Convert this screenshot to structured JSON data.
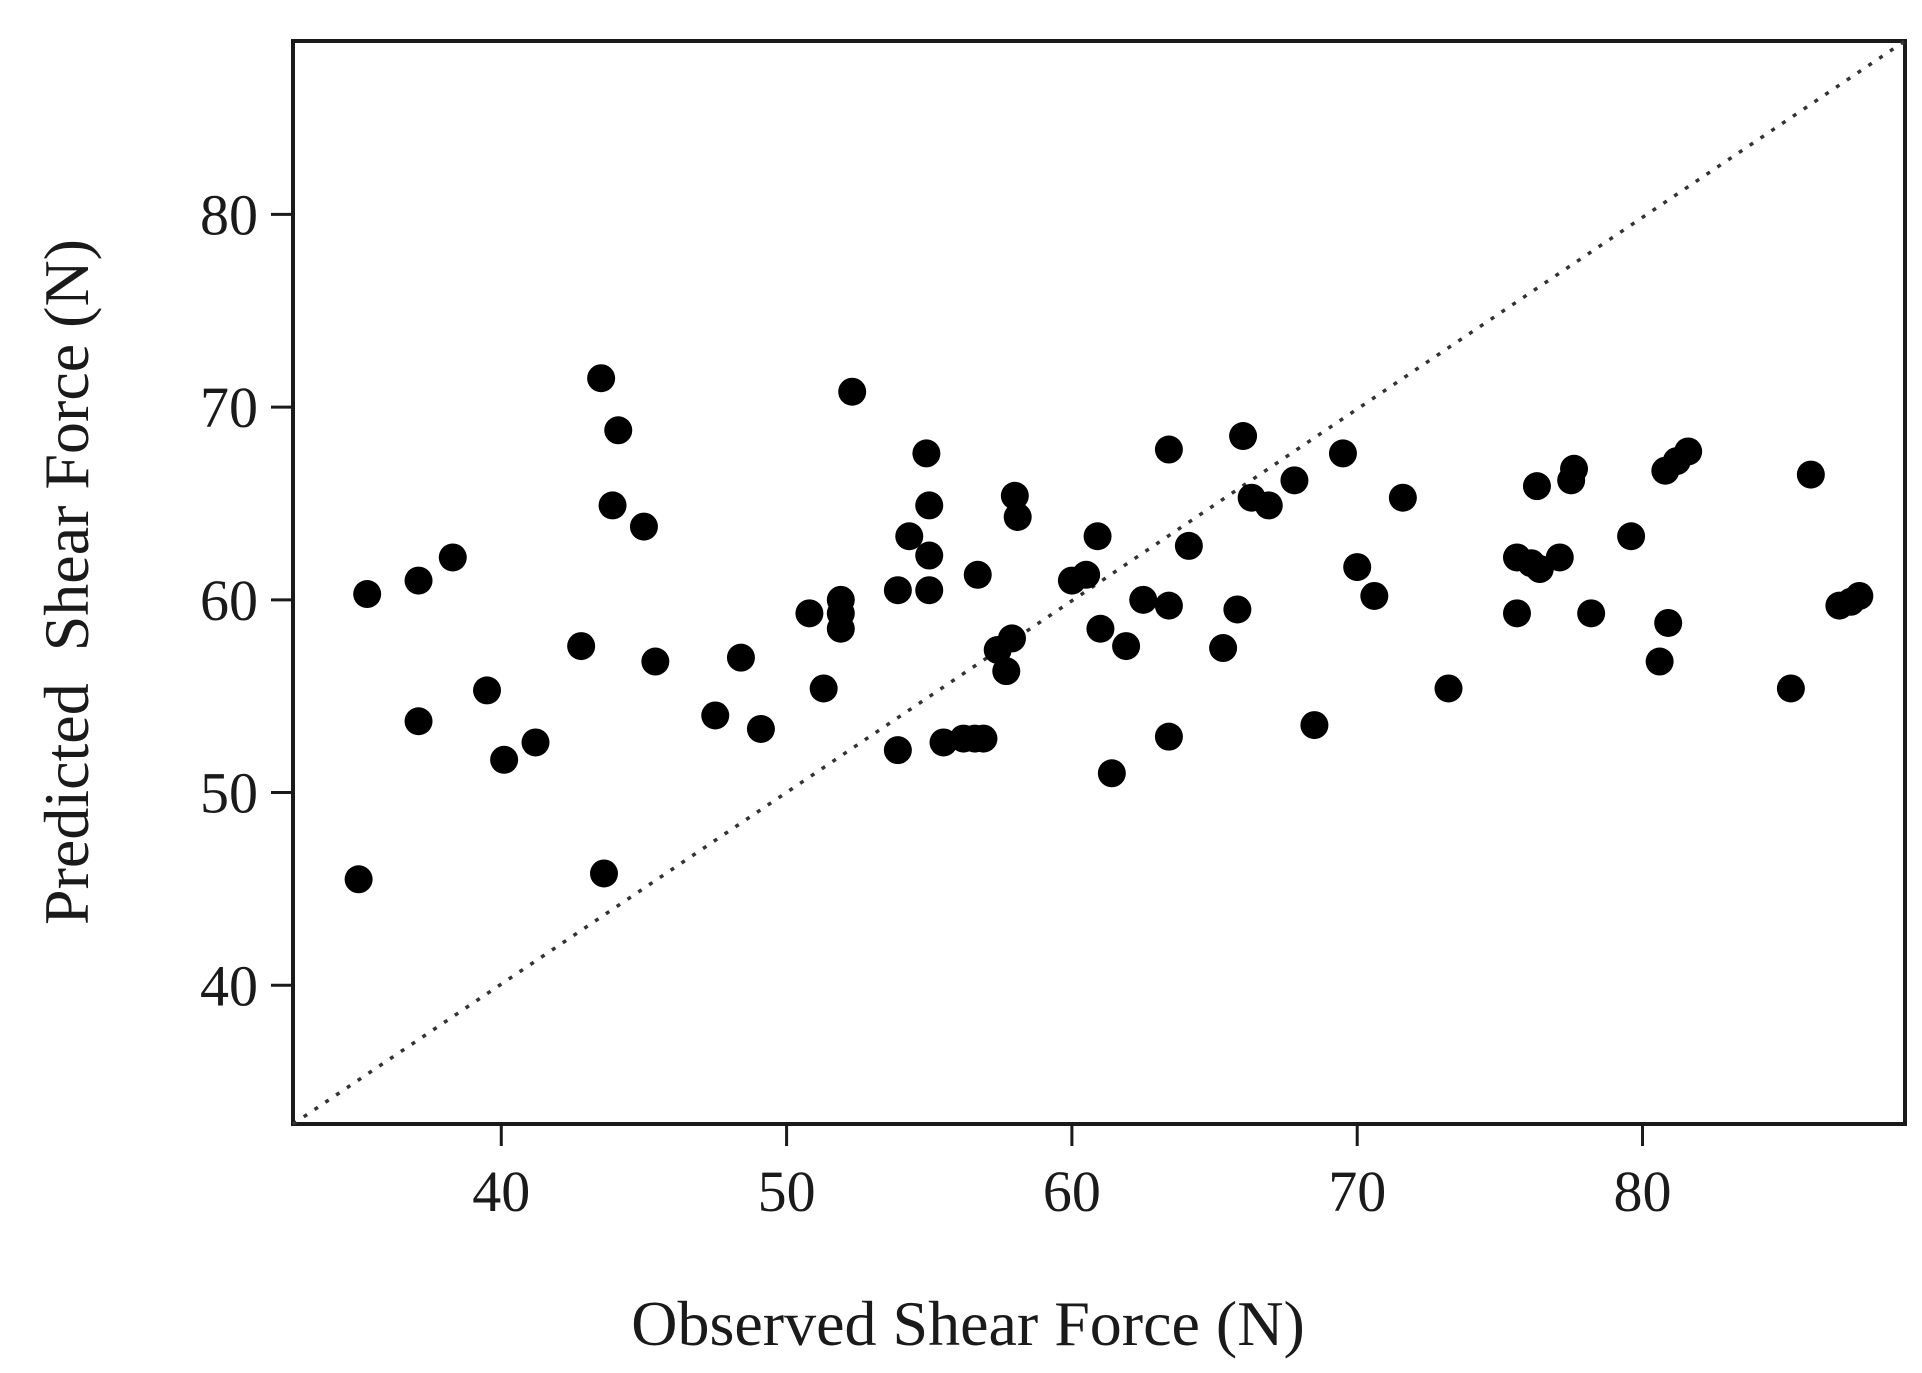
{
  "chart_data": {
    "type": "scatter",
    "title": "",
    "xlabel": "Observed Shear Force (N)",
    "ylabel": "Predicted  Shear Force (N)",
    "xlim": [
      32.7,
      89.2
    ],
    "ylim": [
      32.8,
      89.0
    ],
    "xticks": [
      40,
      50,
      60,
      70,
      80
    ],
    "yticks": [
      40,
      50,
      60,
      70,
      80
    ],
    "grid": false,
    "legend": "none",
    "reference_line": {
      "style": "dotted",
      "x": [
        32.7,
        89.2
      ],
      "y": [
        32.8,
        89.0
      ]
    },
    "marker_color": "#000000",
    "points": [
      [
        35.0,
        45.5
      ],
      [
        35.3,
        60.3
      ],
      [
        37.1,
        53.7
      ],
      [
        37.1,
        61.0
      ],
      [
        38.3,
        62.2
      ],
      [
        39.5,
        55.3
      ],
      [
        40.1,
        51.7
      ],
      [
        41.2,
        52.6
      ],
      [
        42.8,
        57.6
      ],
      [
        43.5,
        71.5
      ],
      [
        43.6,
        45.8
      ],
      [
        43.9,
        64.9
      ],
      [
        44.1,
        68.8
      ],
      [
        45.0,
        63.8
      ],
      [
        45.4,
        56.8
      ],
      [
        47.5,
        54.0
      ],
      [
        48.4,
        57.0
      ],
      [
        49.1,
        53.3
      ],
      [
        50.8,
        59.3
      ],
      [
        51.3,
        55.4
      ],
      [
        51.9,
        60.0
      ],
      [
        51.9,
        59.3
      ],
      [
        51.9,
        58.5
      ],
      [
        52.3,
        70.8
      ],
      [
        53.9,
        52.2
      ],
      [
        53.9,
        60.5
      ],
      [
        54.3,
        63.3
      ],
      [
        54.9,
        67.6
      ],
      [
        55.0,
        64.9
      ],
      [
        55.0,
        62.3
      ],
      [
        55.0,
        60.5
      ],
      [
        55.5,
        52.6
      ],
      [
        56.2,
        52.8
      ],
      [
        56.6,
        52.8
      ],
      [
        56.7,
        61.3
      ],
      [
        56.9,
        52.8
      ],
      [
        57.4,
        57.4
      ],
      [
        57.7,
        56.3
      ],
      [
        57.9,
        58.0
      ],
      [
        58.0,
        65.4
      ],
      [
        58.1,
        64.3
      ],
      [
        60.0,
        61.0
      ],
      [
        60.5,
        61.3
      ],
      [
        60.9,
        63.3
      ],
      [
        61.0,
        58.5
      ],
      [
        61.4,
        51.0
      ],
      [
        61.9,
        57.6
      ],
      [
        62.5,
        60.0
      ],
      [
        63.4,
        67.8
      ],
      [
        63.4,
        59.7
      ],
      [
        63.4,
        52.9
      ],
      [
        64.1,
        62.8
      ],
      [
        65.3,
        57.5
      ],
      [
        65.8,
        59.5
      ],
      [
        66.0,
        68.5
      ],
      [
        66.3,
        65.3
      ],
      [
        66.9,
        64.9
      ],
      [
        67.8,
        66.2
      ],
      [
        68.5,
        53.5
      ],
      [
        69.5,
        67.6
      ],
      [
        70.0,
        61.7
      ],
      [
        70.6,
        60.2
      ],
      [
        71.6,
        65.3
      ],
      [
        73.2,
        55.4
      ],
      [
        75.6,
        62.2
      ],
      [
        75.6,
        59.3
      ],
      [
        76.1,
        61.9
      ],
      [
        76.3,
        65.9
      ],
      [
        76.4,
        61.6
      ],
      [
        77.1,
        62.2
      ],
      [
        77.5,
        66.2
      ],
      [
        77.6,
        66.8
      ],
      [
        78.2,
        59.3
      ],
      [
        79.6,
        63.3
      ],
      [
        80.6,
        56.8
      ],
      [
        80.8,
        66.7
      ],
      [
        80.9,
        58.8
      ],
      [
        81.2,
        67.2
      ],
      [
        81.6,
        67.7
      ],
      [
        85.2,
        55.4
      ],
      [
        85.9,
        66.5
      ],
      [
        86.9,
        59.7
      ],
      [
        87.3,
        59.9
      ],
      [
        87.6,
        60.2
      ]
    ]
  }
}
